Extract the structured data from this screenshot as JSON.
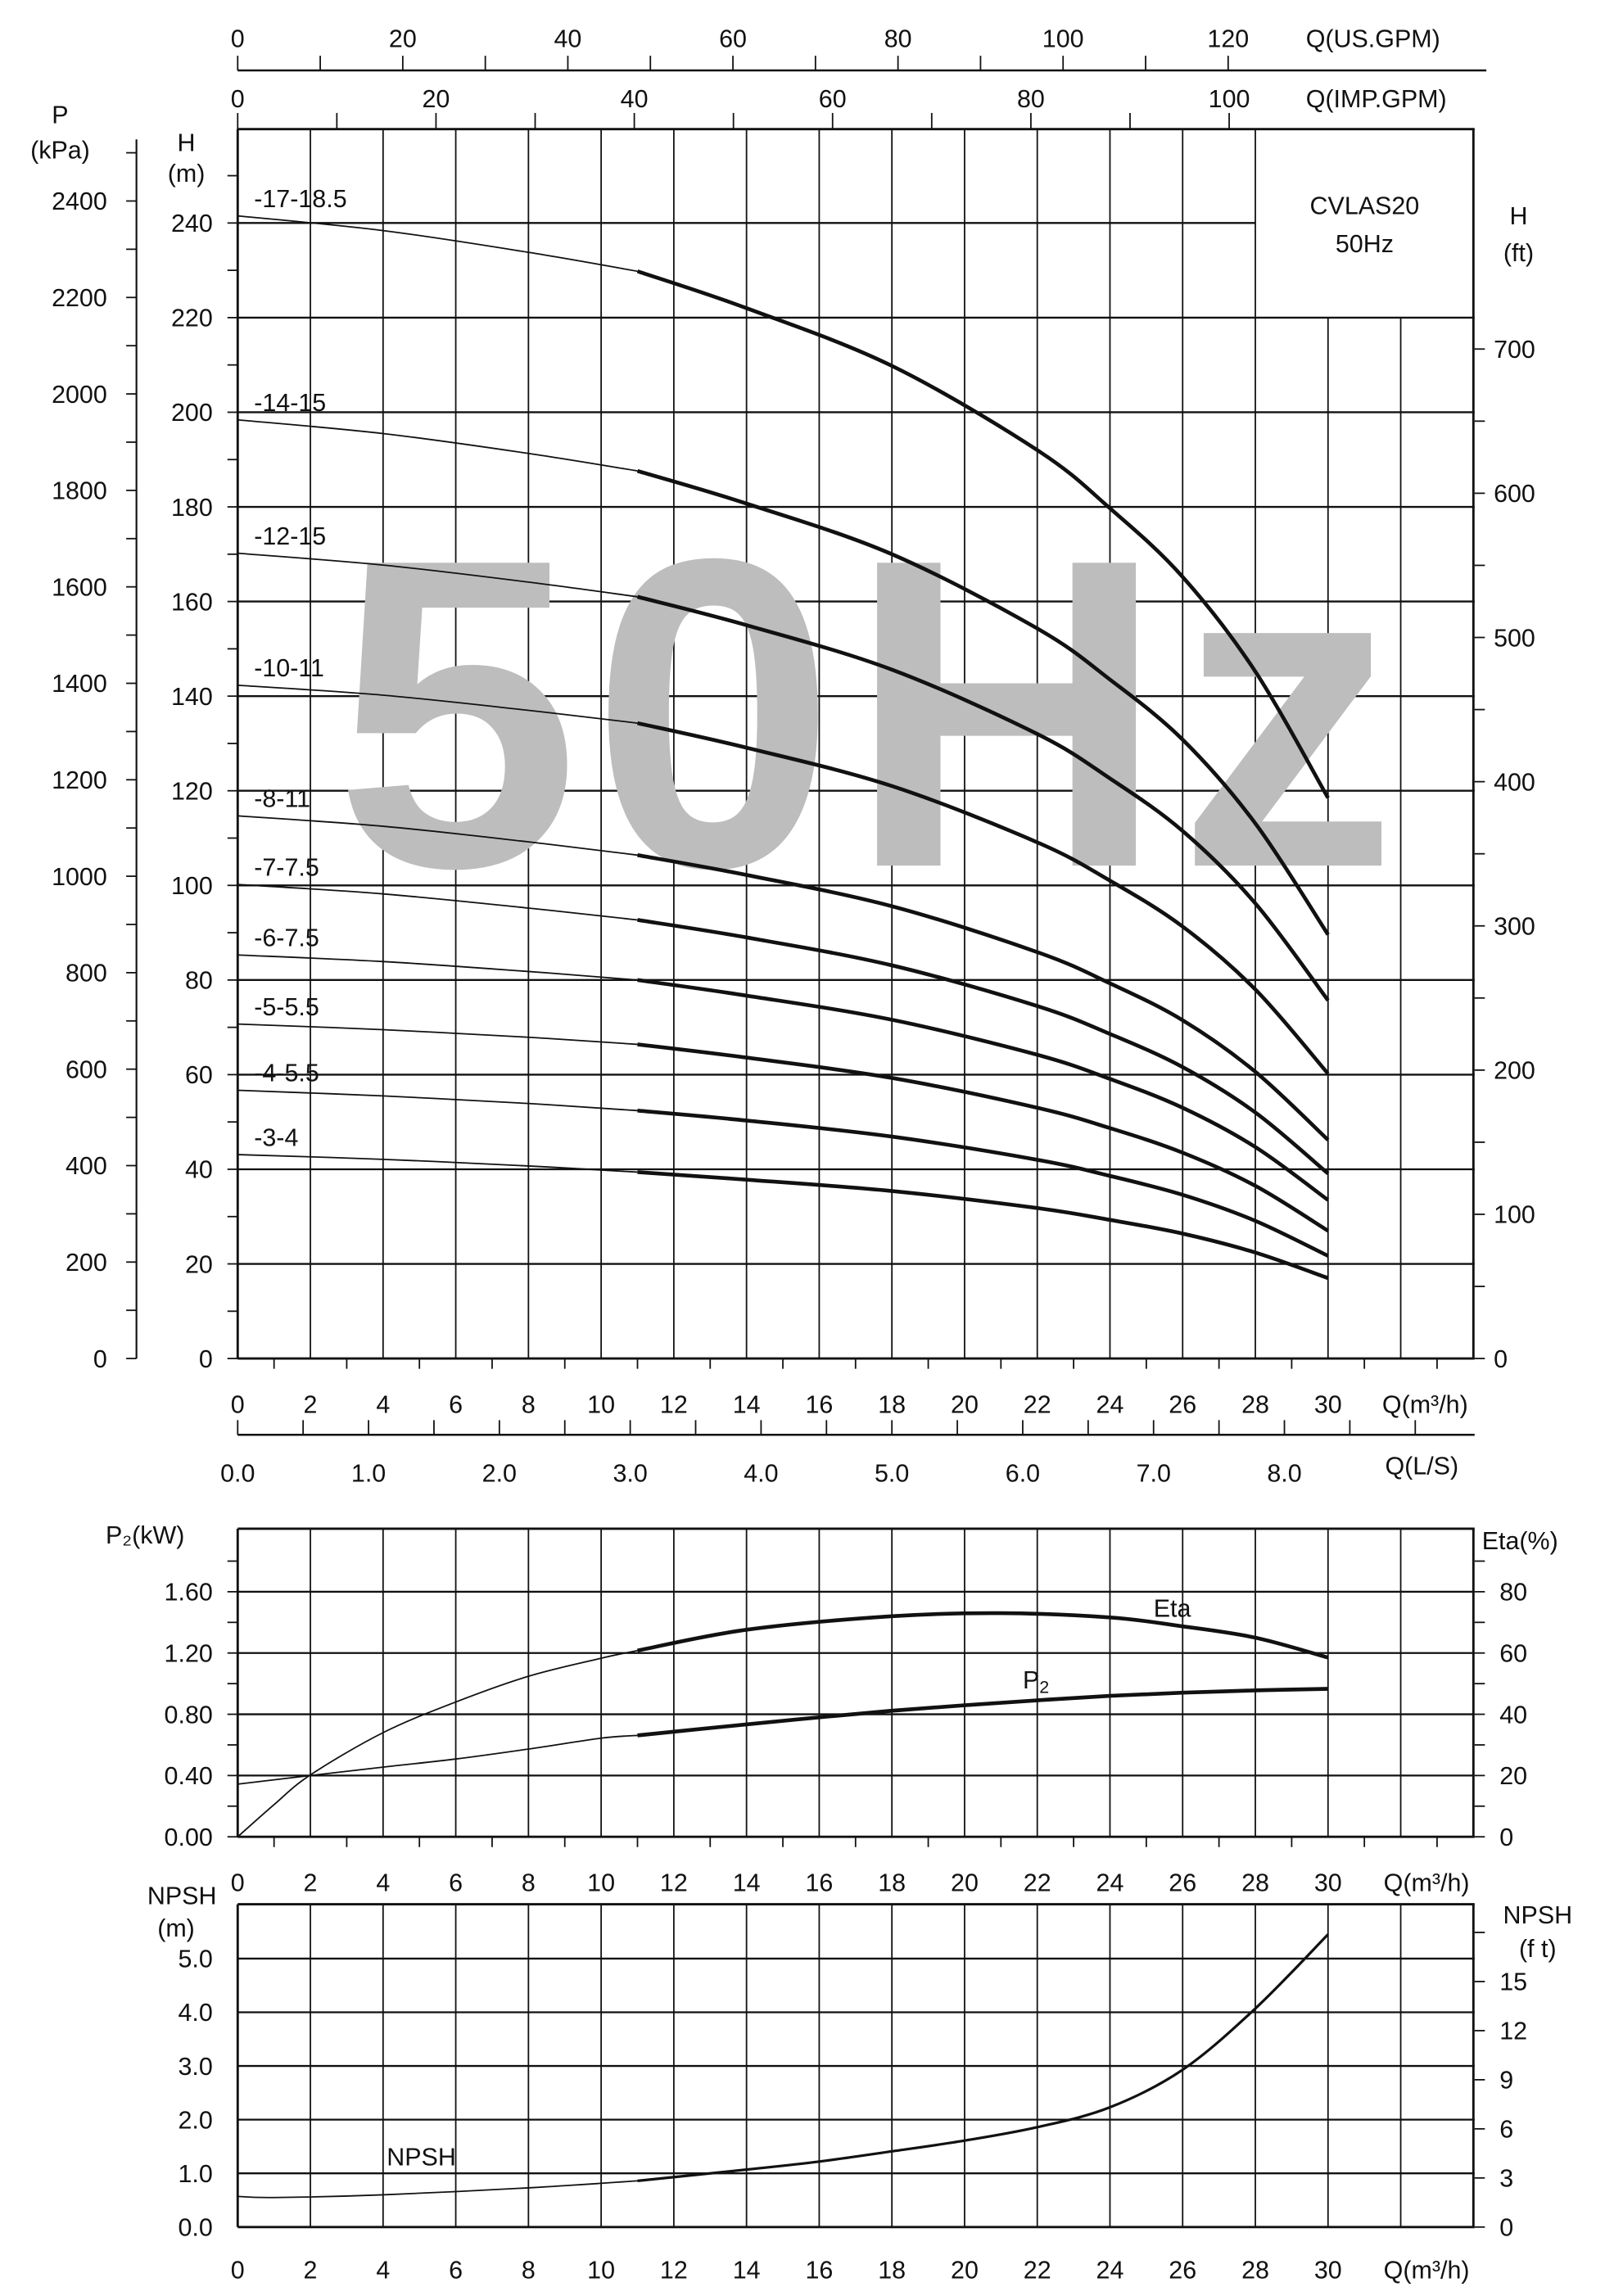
{
  "header": {
    "model": "CVLAS20",
    "frequency": "50Hz"
  },
  "watermark": "50Hz",
  "axes": {
    "us_gpm": {
      "label": "Q(US.GPM)",
      "ticks": [
        "0",
        "20",
        "40",
        "60",
        "80",
        "100",
        "120"
      ]
    },
    "imp_gpm": {
      "label": "Q(IMP.GPM)",
      "ticks": [
        "0",
        "20",
        "40",
        "60",
        "80",
        "100"
      ]
    },
    "q_m3h": {
      "label": "Q(m³/h)",
      "ticks": [
        "0",
        "2",
        "4",
        "6",
        "8",
        "10",
        "12",
        "14",
        "16",
        "18",
        "20",
        "22",
        "24",
        "26",
        "28",
        "30"
      ]
    },
    "q_ls": {
      "label": "Q(L/S)",
      "ticks": [
        "0.0",
        "1.0",
        "2.0",
        "3.0",
        "4.0",
        "5.0",
        "6.0",
        "7.0",
        "8.0"
      ]
    },
    "p_kpa": {
      "label": "P",
      "unit": "(kPa)",
      "ticks": [
        "0",
        "200",
        "400",
        "600",
        "800",
        "1000",
        "1200",
        "1400",
        "1600",
        "1800",
        "2000",
        "2200",
        "2400"
      ]
    },
    "h_m": {
      "label": "H",
      "unit": "(m)",
      "ticks": [
        "0",
        "20",
        "40",
        "60",
        "80",
        "100",
        "120",
        "140",
        "160",
        "180",
        "200",
        "220",
        "240"
      ]
    },
    "h_ft": {
      "label": "H",
      "unit": "(ft)",
      "ticks": [
        "0",
        "100",
        "200",
        "300",
        "400",
        "500",
        "600",
        "700"
      ]
    },
    "p2_kw": {
      "label": "P₂(kW)",
      "ticks": [
        "0.00",
        "0.40",
        "0.80",
        "1.20",
        "1.60"
      ]
    },
    "eta_pct": {
      "label": "Eta(%)",
      "ticks": [
        "0",
        "20",
        "40",
        "60",
        "80"
      ]
    },
    "npsh_m": {
      "label": "NPSH",
      "unit": "(m)",
      "ticks": [
        "0.0",
        "1.0",
        "2.0",
        "3.0",
        "4.0",
        "5.0"
      ]
    },
    "npsh_ft": {
      "label": "NPSH",
      "unit": "(f t)",
      "ticks": [
        "0",
        "3",
        "6",
        "9",
        "12",
        "15"
      ]
    }
  },
  "chart_data": [
    {
      "type": "line",
      "xlabel": "Q(m³/h)",
      "ylabel": "H (m)",
      "xlim": [
        0,
        34
      ],
      "ylim": [
        0,
        240
      ],
      "grid": true,
      "x": [
        0,
        4,
        8,
        11,
        14,
        18,
        22,
        24,
        26,
        28,
        30
      ],
      "series": [
        {
          "name": "-17-18.5",
          "values": [
            241.5,
            238.4,
            233.8,
            229.8,
            222.0,
            209.8,
            192.0,
            179.7,
            165.2,
            145.2,
            118.5
          ]
        },
        {
          "name": "-14-15",
          "values": [
            198.4,
            195.5,
            191.3,
            187.6,
            180.7,
            170.0,
            154.3,
            143.5,
            130.8,
            113.1,
            89.6
          ]
        },
        {
          "name": "-12-15",
          "values": [
            170.2,
            167.7,
            164.1,
            161.0,
            155.0,
            145.6,
            132.0,
            122.6,
            111.5,
            96.2,
            75.7
          ]
        },
        {
          "name": "-10-11",
          "values": [
            142.3,
            140.2,
            137.0,
            134.3,
            129.1,
            121.0,
            109.1,
            101.0,
            91.3,
            78.0,
            60.2
          ]
        },
        {
          "name": "-8-11",
          "values": [
            114.7,
            112.5,
            109.2,
            106.4,
            102.2,
            95.6,
            85.9,
            79.3,
            71.5,
            60.6,
            46.2
          ]
        },
        {
          "name": "-7-7.5",
          "values": [
            100.2,
            98.2,
            95.2,
            92.7,
            89.0,
            83.1,
            74.5,
            68.6,
            61.6,
            52.0,
            39.1
          ]
        },
        {
          "name": "-6-7.5",
          "values": [
            85.3,
            83.9,
            81.8,
            80.0,
            76.7,
            71.6,
            64.2,
            59.1,
            53.0,
            44.7,
            33.5
          ]
        },
        {
          "name": "-5-5.5",
          "values": [
            70.7,
            69.5,
            67.9,
            66.4,
            63.6,
            59.3,
            53.0,
            48.7,
            43.5,
            36.5,
            27.0
          ]
        },
        {
          "name": "-4-5.5",
          "values": [
            56.7,
            55.5,
            53.9,
            52.4,
            50.3,
            46.9,
            42.0,
            38.6,
            34.6,
            29.1,
            21.7
          ]
        },
        {
          "name": "-3-4",
          "values": [
            43.1,
            42.1,
            40.7,
            39.4,
            37.8,
            35.4,
            31.8,
            29.3,
            26.4,
            22.4,
            17.0
          ]
        }
      ]
    },
    {
      "type": "line",
      "xlabel": "Q(m³/h)",
      "ylabel": "P₂(kW)",
      "y2label": "Eta(%)",
      "xlim": [
        0,
        34
      ],
      "ylim": [
        0,
        2.0
      ],
      "y2lim": [
        0,
        100
      ],
      "grid": true,
      "series": [
        {
          "name": "Eta",
          "axis": "right",
          "x": [
            0,
            1,
            2,
            4,
            6,
            8,
            10,
            11,
            14,
            18,
            21,
            24,
            26,
            28,
            30
          ],
          "values": [
            0,
            10.5,
            20.2,
            34,
            44,
            52.4,
            58.3,
            60.8,
            67.6,
            72,
            73,
            71.6,
            68.7,
            65,
            58.5
          ]
        },
        {
          "name": "P2",
          "axis": "left",
          "x": [
            0,
            2,
            4,
            6,
            8,
            10,
            11,
            14,
            16,
            18,
            20,
            22,
            24,
            26,
            28,
            30
          ],
          "values": [
            0.344,
            0.4,
            0.455,
            0.508,
            0.573,
            0.644,
            0.662,
            0.734,
            0.78,
            0.823,
            0.859,
            0.891,
            0.92,
            0.941,
            0.956,
            0.966
          ]
        }
      ]
    },
    {
      "type": "line",
      "xlabel": "Q(m³/h)",
      "ylabel": "NPSH (m)",
      "y2label": "NPSH (ft)",
      "xlim": [
        0,
        34
      ],
      "ylim": [
        0,
        6.0
      ],
      "grid": true,
      "series": [
        {
          "name": "NPSH",
          "x": [
            0,
            1,
            4,
            8,
            11,
            14,
            16,
            18,
            20,
            22,
            24,
            26,
            28,
            30
          ],
          "values": [
            0.57,
            0.55,
            0.6,
            0.73,
            0.86,
            1.07,
            1.22,
            1.41,
            1.61,
            1.86,
            2.23,
            2.93,
            4.07,
            5.45
          ]
        }
      ]
    }
  ]
}
